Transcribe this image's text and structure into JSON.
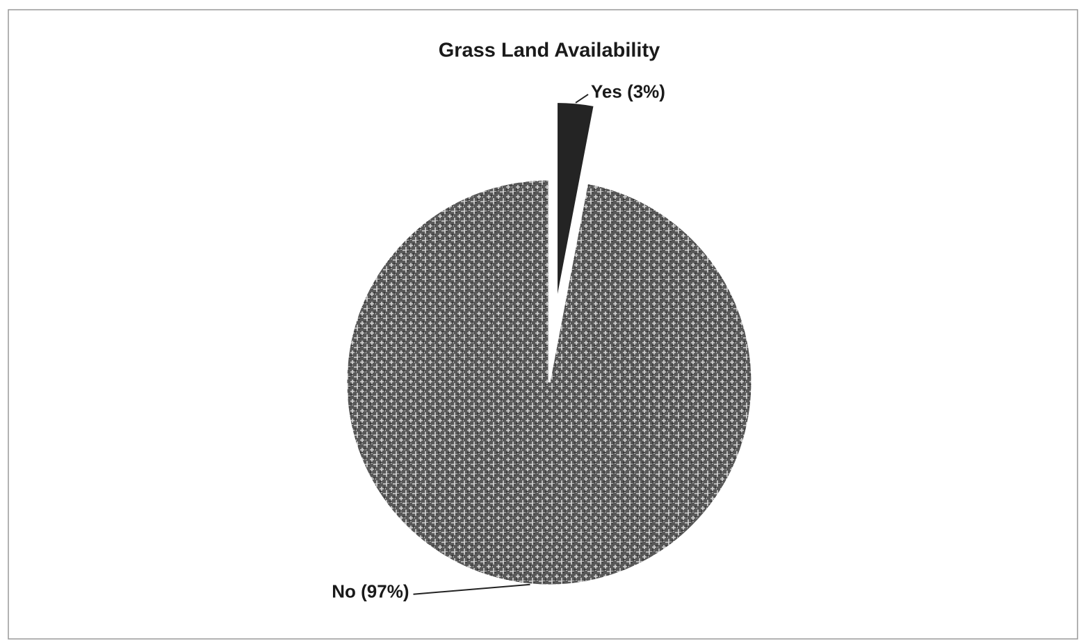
{
  "chart_data": {
    "type": "pie",
    "title": "Grass Land Availability",
    "values": [
      3,
      97
    ],
    "value_labels": [
      "Yes (3%)",
      "No (97%)"
    ],
    "colors": [
      "#242424",
      "#6a6a6a"
    ],
    "exploded": [
      true,
      false
    ]
  }
}
